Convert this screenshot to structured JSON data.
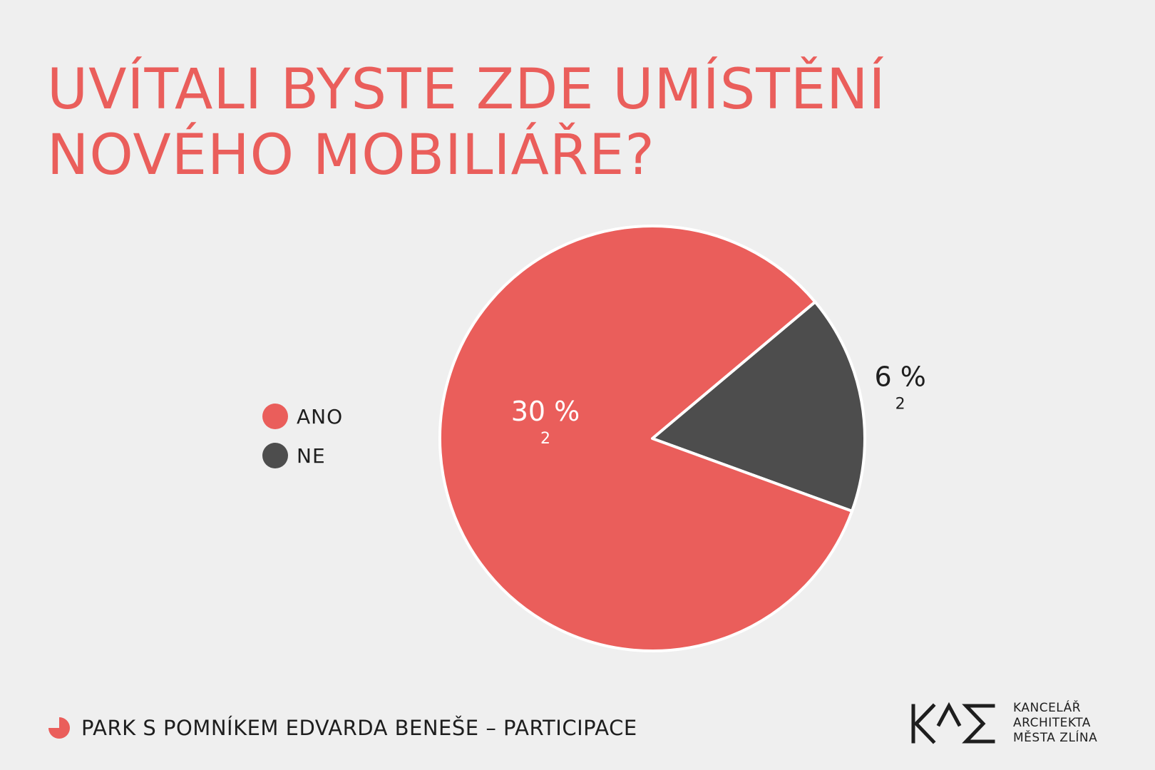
{
  "title": {
    "line1": "UVÍTALI BYSTE ZDE UMÍSTĚNÍ",
    "line2": "NOVÉHO MOBILIÁŘE?"
  },
  "chart_data": {
    "type": "pie",
    "title": "UVÍTALI BYSTE ZDE UMÍSTĚNÍ NOVÉHO MOBILIÁŘE?",
    "legend_position": "left",
    "slices": [
      {
        "name": "ANO",
        "value": 30,
        "label_value": "30",
        "label_unit": "%",
        "label_sub": "2",
        "color": "#ea5e5b",
        "label_color": "#ffffff"
      },
      {
        "name": "NE",
        "value": 6,
        "label_value": "6",
        "label_unit": "%",
        "label_sub": "2",
        "color": "#4d4d4d",
        "label_color": "#1e1e1e"
      }
    ]
  },
  "footer": {
    "text": "PARK S POMNÍKEM EDVARDA BENEŠE – PARTICIPACE",
    "icon": "pie-chart-icon"
  },
  "logo": {
    "mark_text": "KAM",
    "line1": "KANCELÁŘ",
    "line2": "ARCHITEKTA",
    "line3": "MĚSTA ZLÍNA"
  },
  "colors": {
    "background": "#efefef",
    "accent": "#ea5e5b",
    "dark": "#4d4d4d",
    "text": "#1e1e1e"
  }
}
